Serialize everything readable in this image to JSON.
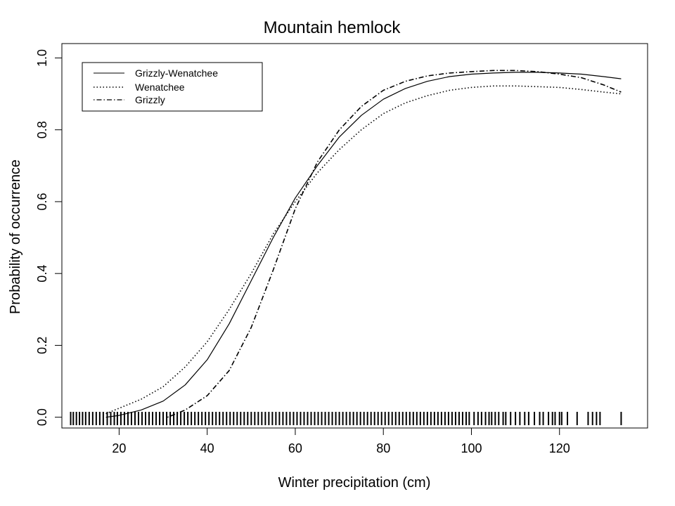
{
  "chart_data": {
    "type": "line",
    "title": "Mountain hemlock",
    "xlabel": "Winter precipitation (cm)",
    "ylabel": "Probability of occurrence",
    "xlim": [
      7,
      140
    ],
    "ylim": [
      -0.03,
      1.04
    ],
    "x_ticks": [
      20,
      40,
      60,
      80,
      100,
      120
    ],
    "y_ticks": [
      0.0,
      0.2,
      0.4,
      0.6,
      0.8,
      1.0
    ],
    "y_tick_labels": [
      "0.0",
      "0.2",
      "0.4",
      "0.6",
      "0.8",
      "1.0"
    ],
    "grid": false,
    "legend_position": "top-left",
    "series": [
      {
        "name": "Grizzly-Wenatchee",
        "line_style": "solid",
        "x": [
          17,
          20,
          25,
          30,
          35,
          40,
          45,
          50,
          55,
          60,
          65,
          70,
          75,
          80,
          85,
          90,
          95,
          100,
          105,
          110,
          115,
          120,
          125,
          130,
          134
        ],
        "y": [
          0.0,
          0.005,
          0.02,
          0.045,
          0.09,
          0.16,
          0.26,
          0.38,
          0.5,
          0.61,
          0.7,
          0.78,
          0.84,
          0.885,
          0.915,
          0.935,
          0.948,
          0.955,
          0.958,
          0.96,
          0.96,
          0.958,
          0.955,
          0.948,
          0.942
        ]
      },
      {
        "name": "Wenatchee",
        "line_style": "dotted",
        "x": [
          17,
          20,
          25,
          30,
          35,
          40,
          45,
          50,
          55,
          60,
          65,
          70,
          75,
          80,
          85,
          90,
          95,
          100,
          105,
          110,
          115,
          120,
          125,
          130,
          134
        ],
        "y": [
          0.01,
          0.025,
          0.05,
          0.085,
          0.14,
          0.21,
          0.3,
          0.4,
          0.51,
          0.6,
          0.68,
          0.745,
          0.8,
          0.845,
          0.875,
          0.895,
          0.91,
          0.918,
          0.922,
          0.922,
          0.92,
          0.918,
          0.912,
          0.905,
          0.9
        ]
      },
      {
        "name": "Grizzly",
        "line_style": "dotdash",
        "x": [
          31,
          35,
          40,
          45,
          50,
          55,
          60,
          65,
          70,
          75,
          80,
          85,
          90,
          95,
          100,
          105,
          110,
          115,
          120,
          125,
          130,
          134
        ],
        "y": [
          0.0,
          0.02,
          0.06,
          0.13,
          0.25,
          0.41,
          0.58,
          0.71,
          0.8,
          0.865,
          0.91,
          0.935,
          0.95,
          0.958,
          0.962,
          0.965,
          0.965,
          0.962,
          0.955,
          0.945,
          0.925,
          0.905
        ]
      }
    ],
    "rug_x": [
      9,
      9.6,
      10.3,
      11,
      11.7,
      12.4,
      13.2,
      14,
      14.8,
      15.6,
      16.4,
      17.3,
      18.1,
      18.9,
      19.6,
      20.4,
      21.2,
      22,
      22.8,
      23.6,
      24.4,
      25.2,
      26,
      26.8,
      27.6,
      28.4,
      29.2,
      30,
      30.8,
      31.6,
      32.4,
      33.2,
      34,
      34.8,
      35.6,
      36.4,
      37.2,
      38,
      38.8,
      39.6,
      40.4,
      41.2,
      42,
      42.8,
      43.6,
      44.4,
      45.2,
      46,
      46.8,
      47.6,
      48.4,
      49.2,
      50,
      50.8,
      51.6,
      52.4,
      53.2,
      54,
      54.8,
      55.6,
      56.4,
      57.2,
      58,
      58.8,
      59.6,
      60.4,
      61.2,
      62,
      62.8,
      63.6,
      64.4,
      65.2,
      66,
      66.8,
      67.6,
      68.4,
      69.2,
      70,
      70.8,
      71.6,
      72.4,
      73.2,
      74,
      74.8,
      75.6,
      76.4,
      77.2,
      78,
      78.8,
      79.6,
      80.4,
      81.2,
      82,
      82.8,
      83.6,
      84.4,
      85.2,
      86,
      86.8,
      87.6,
      88.4,
      89.2,
      90,
      90.8,
      91.6,
      92.4,
      93.2,
      94,
      94.8,
      95.6,
      96.4,
      97.2,
      98,
      98.8,
      99.5,
      100.6,
      101.5,
      102.3,
      103.2,
      104,
      104.6,
      105.4,
      106.2,
      107.2,
      107.8,
      108.9,
      110,
      111,
      112.1,
      113,
      114.3,
      115.5,
      116.3,
      117.5,
      118.4,
      119,
      120,
      120.5,
      121.8,
      124,
      126.5,
      127.5,
      128.4,
      129.2,
      134
    ]
  }
}
